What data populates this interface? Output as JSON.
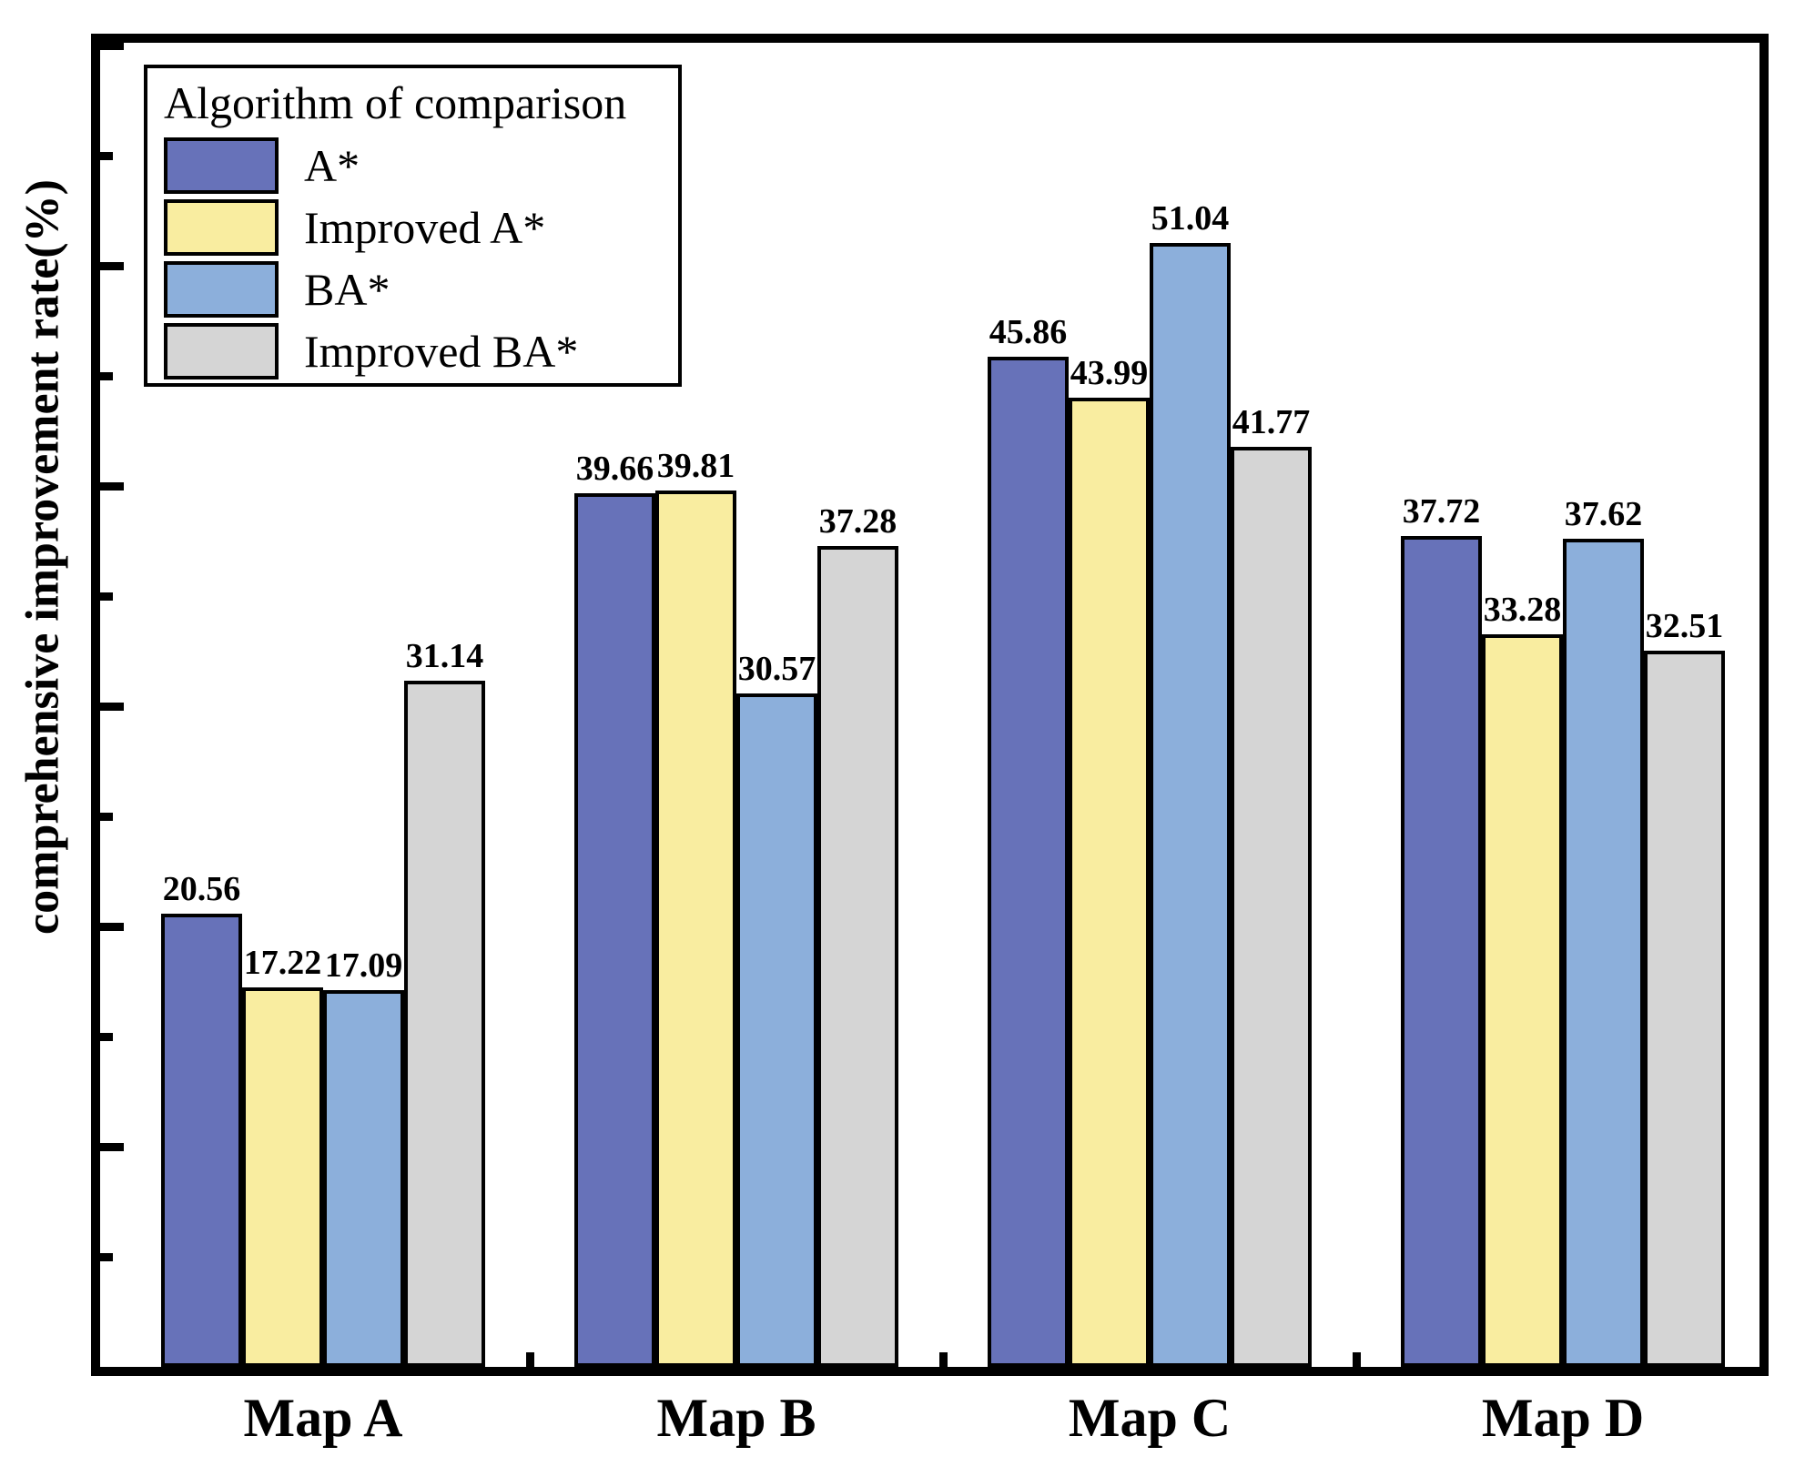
{
  "figure": {
    "y_axis_label": "comprehensive improvement rate(%)",
    "legend": {
      "title": "Algorithm of comparison"
    }
  },
  "chart_data": {
    "type": "bar",
    "title": "",
    "xlabel": "",
    "ylabel": "comprehensive improvement rate(%)",
    "categories": [
      "Map A",
      "Map B",
      "Map C",
      "Map D"
    ],
    "series": [
      {
        "name": "A*",
        "color": "#6772B9",
        "values": [
          20.56,
          39.66,
          45.86,
          37.72
        ]
      },
      {
        "name": "Improved A*",
        "color": "#F9EDA0",
        "values": [
          17.22,
          39.81,
          43.99,
          33.28
        ]
      },
      {
        "name": "BA*",
        "color": "#8CAFDB",
        "values": [
          17.09,
          30.57,
          51.04,
          37.62
        ]
      },
      {
        "name": "Improved BA*",
        "color": "#D5D5D5",
        "values": [
          31.14,
          37.28,
          41.77,
          32.51
        ]
      }
    ],
    "value_labels_shown": true,
    "ylim": [
      0,
      60.1
    ],
    "y_major_tick_step": 10,
    "y_minor_tick_step": 5,
    "y_tick_labels_shown": false,
    "grid": false,
    "bar_edge_color": "#000000",
    "legend_position": "upper-left",
    "legend_title": "Algorithm of comparison"
  }
}
